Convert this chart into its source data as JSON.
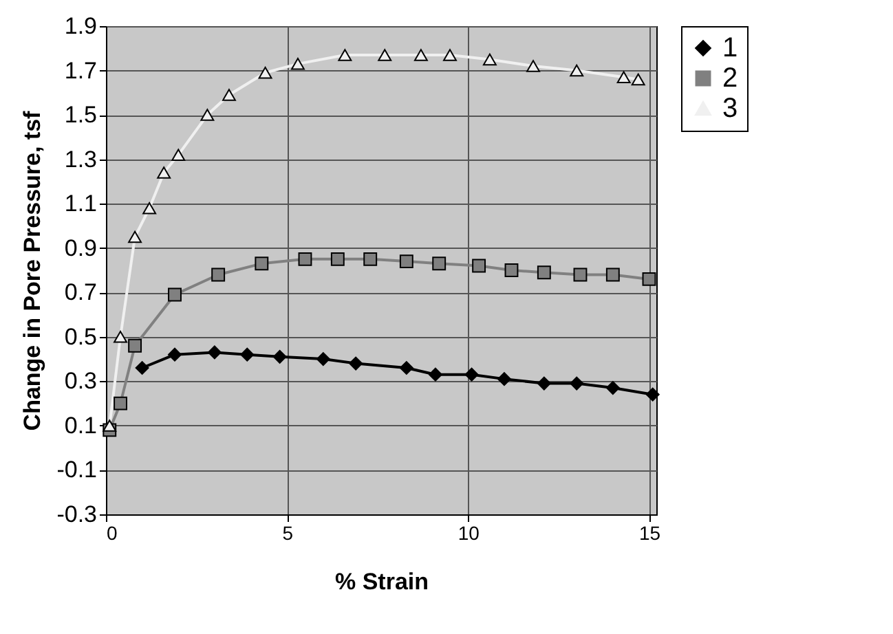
{
  "chart_data": {
    "type": "line",
    "xlabel": "% Strain",
    "ylabel": "Change in Pore Pressure, tsf",
    "xlim": [
      0,
      15.2
    ],
    "xticks": [
      0,
      5,
      10,
      15
    ],
    "ylim": [
      -0.3,
      1.9
    ],
    "yticks": [
      -0.3,
      -0.1,
      0.1,
      0.3,
      0.5,
      0.7,
      0.9,
      1.1,
      1.3,
      1.5,
      1.7,
      1.9
    ],
    "grid": true,
    "legend": "right",
    "series": [
      {
        "name": "1",
        "color": "#000000",
        "marker": "diamond",
        "x": [
          1.0,
          1.9,
          3.0,
          3.9,
          4.8,
          6.0,
          6.9,
          8.3,
          9.1,
          10.1,
          11.0,
          12.1,
          13.0,
          14.0,
          15.1
        ],
        "values": [
          0.36,
          0.42,
          0.43,
          0.42,
          0.41,
          0.4,
          0.38,
          0.36,
          0.33,
          0.33,
          0.31,
          0.29,
          0.29,
          0.27,
          0.24
        ]
      },
      {
        "name": "2",
        "color": "#808080",
        "marker": "square",
        "x": [
          0.1,
          0.4,
          0.8,
          1.9,
          3.1,
          4.3,
          5.5,
          6.4,
          7.3,
          8.3,
          9.2,
          10.3,
          11.2,
          12.1,
          13.1,
          14.0,
          15.0
        ],
        "values": [
          0.08,
          0.2,
          0.46,
          0.69,
          0.78,
          0.83,
          0.85,
          0.85,
          0.85,
          0.84,
          0.83,
          0.82,
          0.8,
          0.79,
          0.78,
          0.78,
          0.76
        ]
      },
      {
        "name": "3",
        "color": "#f0f0f0",
        "marker": "triangle",
        "x": [
          0.1,
          0.4,
          0.8,
          1.2,
          1.6,
          2.0,
          2.8,
          3.4,
          4.4,
          5.3,
          6.6,
          7.7,
          8.7,
          9.5,
          10.6,
          11.8,
          13.0,
          14.3,
          14.7
        ],
        "values": [
          0.1,
          0.5,
          0.95,
          1.08,
          1.24,
          1.32,
          1.5,
          1.59,
          1.69,
          1.73,
          1.77,
          1.77,
          1.77,
          1.77,
          1.75,
          1.72,
          1.7,
          1.67,
          1.66
        ]
      }
    ]
  }
}
